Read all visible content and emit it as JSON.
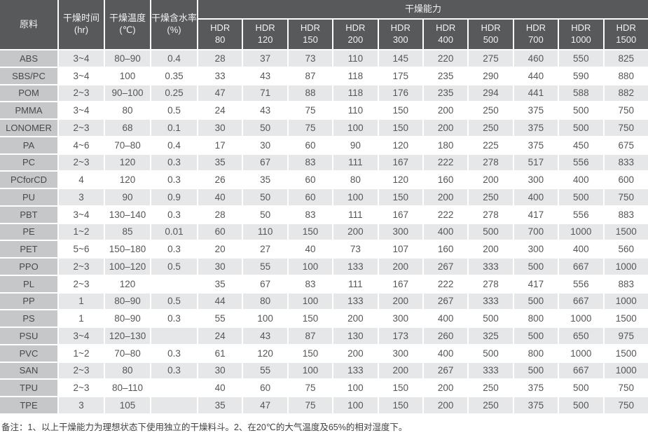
{
  "table": {
    "columns": {
      "material": "原料",
      "time": {
        "label": "干燥时间",
        "unit": "(hr)"
      },
      "temp": {
        "label": "干燥温度",
        "unit": "(℃)"
      },
      "moisture": {
        "label": "干燥含水率",
        "unit": "(%)"
      },
      "capacity_group": "干燥能力",
      "hdr_prefix": "HDR",
      "hdr_models": [
        "80",
        "120",
        "150",
        "200",
        "300",
        "400",
        "500",
        "700",
        "1000",
        "1500"
      ]
    },
    "rows": [
      {
        "material": "ABS",
        "time": "3~4",
        "temp": "80–90",
        "moisture": "0.4",
        "capacity": [
          28,
          37,
          73,
          110,
          145,
          220,
          275,
          460,
          550,
          825
        ]
      },
      {
        "material": "SBS/PC",
        "time": "3~4",
        "temp": "100",
        "moisture": "0.35",
        "capacity": [
          33,
          43,
          87,
          118,
          175,
          235,
          290,
          440,
          590,
          880
        ]
      },
      {
        "material": "POM",
        "time": "2~3",
        "temp": "90–100",
        "moisture": "0.25",
        "capacity": [
          47,
          71,
          88,
          118,
          176,
          235,
          294,
          441,
          588,
          882
        ]
      },
      {
        "material": "PMMA",
        "time": "3~4",
        "temp": "80",
        "moisture": "0.5",
        "capacity": [
          24,
          43,
          75,
          110,
          150,
          200,
          250,
          375,
          500,
          750
        ]
      },
      {
        "material": "LONOMER",
        "time": "2~3",
        "temp": "68",
        "moisture": "0.1",
        "capacity": [
          30,
          50,
          75,
          100,
          150,
          200,
          250,
          375,
          500,
          750
        ]
      },
      {
        "material": "PA",
        "time": "4~6",
        "temp": "70–80",
        "moisture": "0.4",
        "capacity": [
          17,
          30,
          60,
          90,
          120,
          180,
          225,
          375,
          450,
          675
        ]
      },
      {
        "material": "PC",
        "time": "2~3",
        "temp": "120",
        "moisture": "0.3",
        "capacity": [
          35,
          67,
          83,
          111,
          167,
          222,
          278,
          517,
          556,
          833
        ]
      },
      {
        "material": "PCforCD",
        "time": "4",
        "temp": "120",
        "moisture": "0.3",
        "capacity": [
          26,
          35,
          60,
          80,
          120,
          160,
          200,
          300,
          400,
          600
        ]
      },
      {
        "material": "PU",
        "time": "3",
        "temp": "90",
        "moisture": "0.9",
        "capacity": [
          40,
          50,
          60,
          100,
          150,
          200,
          250,
          400,
          500,
          750
        ]
      },
      {
        "material": "PBT",
        "time": "3~4",
        "temp": "130–140",
        "moisture": "0.3",
        "capacity": [
          28,
          50,
          83,
          111,
          167,
          222,
          278,
          417,
          556,
          883
        ]
      },
      {
        "material": "PE",
        "time": "1~2",
        "temp": "85",
        "moisture": "0.01",
        "capacity": [
          60,
          110,
          150,
          200,
          300,
          400,
          500,
          700,
          1000,
          1500
        ]
      },
      {
        "material": "PET",
        "time": "5~6",
        "temp": "150–180",
        "moisture": "0.3",
        "capacity": [
          20,
          27,
          40,
          73,
          107,
          160,
          200,
          300,
          400,
          560
        ]
      },
      {
        "material": "PPO",
        "time": "2~3",
        "temp": "100–120",
        "moisture": "0.5",
        "capacity": [
          30,
          55,
          100,
          133,
          200,
          267,
          333,
          500,
          667,
          1000
        ]
      },
      {
        "material": "PL",
        "time": "2~3",
        "temp": "120",
        "moisture": "",
        "capacity": [
          35,
          67,
          83,
          111,
          167,
          222,
          278,
          417,
          556,
          883
        ]
      },
      {
        "material": "PP",
        "time": "1",
        "temp": "80–90",
        "moisture": "0.5",
        "capacity": [
          44,
          80,
          100,
          133,
          200,
          267,
          333,
          500,
          667,
          1000
        ]
      },
      {
        "material": "PS",
        "time": "1",
        "temp": "80–90",
        "moisture": "0.3",
        "capacity": [
          55,
          100,
          150,
          200,
          300,
          400,
          500,
          800,
          1000,
          1500
        ]
      },
      {
        "material": "PSU",
        "time": "3~4",
        "temp": "120–130",
        "moisture": "",
        "capacity": [
          24,
          43,
          87,
          130,
          173,
          260,
          325,
          500,
          650,
          975
        ]
      },
      {
        "material": "PVC",
        "time": "1~2",
        "temp": "70–80",
        "moisture": "0.3",
        "capacity": [
          61,
          120,
          150,
          200,
          300,
          400,
          500,
          800,
          1000,
          1500
        ]
      },
      {
        "material": "SAN",
        "time": "2~3",
        "temp": "80",
        "moisture": "0.3",
        "capacity": [
          30,
          55,
          100,
          133,
          200,
          267,
          333,
          500,
          667,
          1000
        ]
      },
      {
        "material": "TPU",
        "time": "2~3",
        "temp": "80–110",
        "moisture": "",
        "capacity": [
          40,
          60,
          75,
          100,
          150,
          200,
          250,
          375,
          500,
          750
        ]
      },
      {
        "material": "TPE",
        "time": "3",
        "temp": "105",
        "moisture": "",
        "capacity": [
          35,
          47,
          75,
          100,
          150,
          200,
          250,
          375,
          500,
          750
        ]
      }
    ]
  },
  "footer": {
    "note": "备注：1、以上干燥能力为理想状态下使用独立的干燥料斗。2、在20℃的大气温度及65%的相对湿度下。"
  },
  "colors": {
    "header_bg": "#58595b",
    "header_text": "#f2f2f3",
    "material_col_bg": "#c6c7c9",
    "stripe_bg": "#e6e7e8",
    "row_bg": "#ffffff",
    "body_text": "#555658",
    "grid_line": "#ffffff"
  }
}
